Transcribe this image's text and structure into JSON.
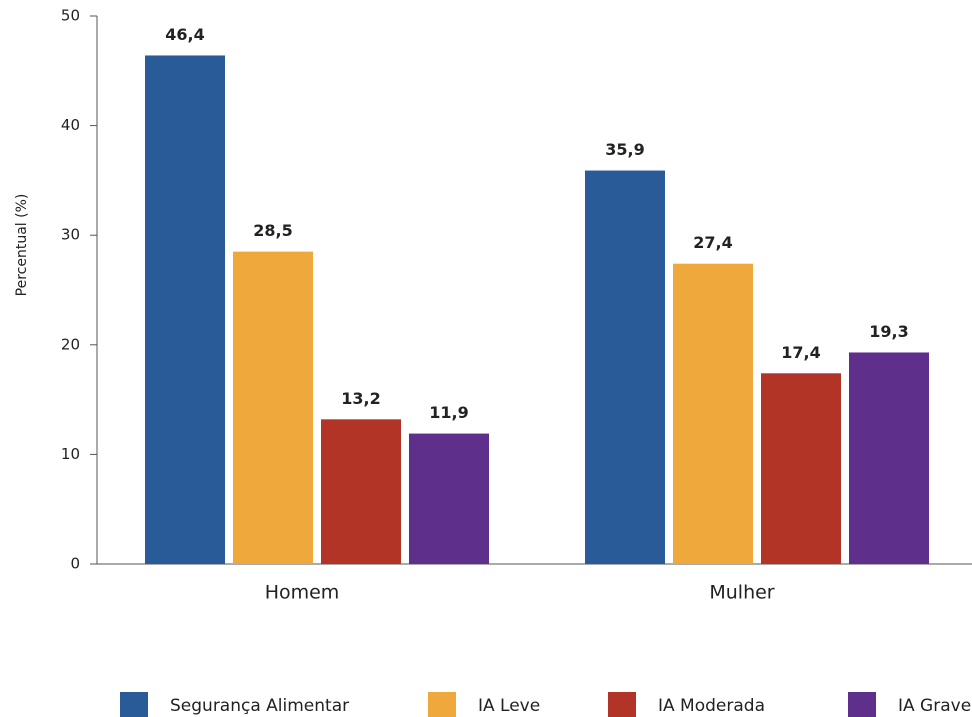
{
  "chart_data": {
    "type": "bar",
    "y_label": "Percentual (%)",
    "categories": [
      "Homem",
      "Mulher"
    ],
    "series": [
      {
        "name": "Segurança Alimentar",
        "color": "#2a5b99",
        "values": [
          46.4,
          35.9
        ],
        "value_labels": [
          "46,4",
          "35,9"
        ]
      },
      {
        "name": "IA Leve",
        "color": "#eea83b",
        "values": [
          28.5,
          27.4
        ],
        "value_labels": [
          "28,5",
          "27,4"
        ]
      },
      {
        "name": "IA Moderada",
        "color": "#b13426",
        "values": [
          13.2,
          17.4
        ],
        "value_labels": [
          "13,2",
          "17,4"
        ]
      },
      {
        "name": "IA Grave",
        "color": "#5e2f8b",
        "values": [
          11.9,
          19.3
        ],
        "value_labels": [
          "11,9",
          "19,3"
        ]
      }
    ],
    "ylim": [
      0,
      50
    ],
    "yticks": [
      0,
      10,
      20,
      30,
      40,
      50
    ],
    "legend": "bottom"
  }
}
